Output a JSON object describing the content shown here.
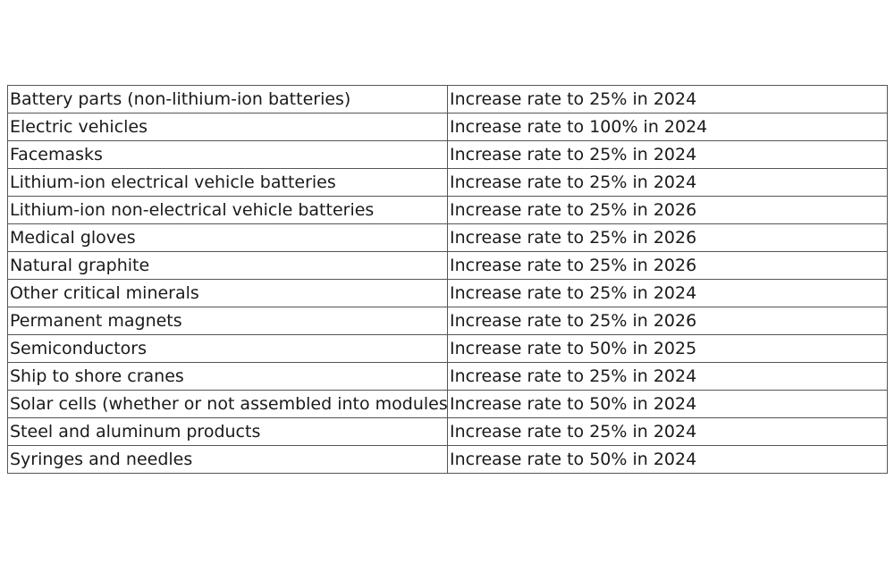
{
  "table": {
    "rows": [
      {
        "product": "Battery parts (non-lithium-ion batteries)",
        "rate": "Increase rate to 25% in 2024"
      },
      {
        "product": "Electric vehicles",
        "rate": "Increase rate to 100% in 2024"
      },
      {
        "product": "Facemasks",
        "rate": "Increase rate to 25% in 2024"
      },
      {
        "product": "Lithium-ion electrical vehicle batteries",
        "rate": "Increase rate to 25% in 2024"
      },
      {
        "product": "Lithium-ion non-electrical vehicle batteries",
        "rate": "Increase rate to 25% in 2026"
      },
      {
        "product": "Medical gloves",
        "rate": "Increase rate to 25% in 2026"
      },
      {
        "product": "Natural graphite",
        "rate": "Increase rate to 25% in 2026"
      },
      {
        "product": "Other critical minerals",
        "rate": "Increase rate to 25% in 2024"
      },
      {
        "product": "Permanent magnets",
        "rate": "Increase rate to 25% in 2026"
      },
      {
        "product": "Semiconductors",
        "rate": "Increase rate to 50% in 2025"
      },
      {
        "product": "Ship to shore cranes",
        "rate": "Increase rate to 25% in 2024"
      },
      {
        "product": "Solar cells (whether or not assembled into modules)",
        "rate": "Increase rate to 50% in 2024"
      },
      {
        "product": "Steel and aluminum products",
        "rate": "Increase rate to 25% in 2024"
      },
      {
        "product": "Syringes and needles",
        "rate": "Increase rate to 50% in 2024"
      }
    ]
  }
}
